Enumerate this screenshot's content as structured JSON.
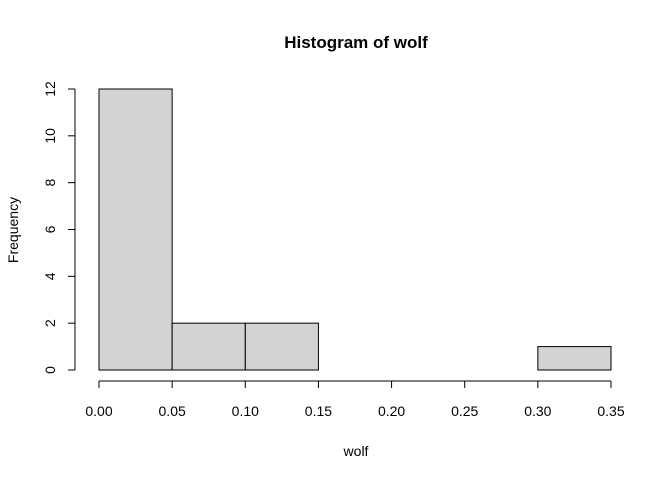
{
  "chart_data": {
    "type": "bar",
    "title": "Histogram of wolf",
    "xlabel": "wolf",
    "ylabel": "Frequency",
    "bins": [
      {
        "start": 0.0,
        "end": 0.05,
        "count": 12
      },
      {
        "start": 0.05,
        "end": 0.1,
        "count": 2
      },
      {
        "start": 0.1,
        "end": 0.15,
        "count": 2
      },
      {
        "start": 0.15,
        "end": 0.2,
        "count": 0
      },
      {
        "start": 0.2,
        "end": 0.25,
        "count": 0
      },
      {
        "start": 0.25,
        "end": 0.3,
        "count": 0
      },
      {
        "start": 0.3,
        "end": 0.35,
        "count": 1
      }
    ],
    "xlim": [
      0,
      0.35
    ],
    "ylim": [
      0,
      12
    ],
    "x_ticks": [
      "0.00",
      "0.05",
      "0.10",
      "0.15",
      "0.20",
      "0.25",
      "0.30",
      "0.35"
    ],
    "y_ticks": [
      "0",
      "2",
      "4",
      "6",
      "8",
      "10",
      "12"
    ],
    "grid": false,
    "colors": {
      "bar_fill": "#d3d3d3",
      "bar_stroke": "#000000"
    }
  }
}
